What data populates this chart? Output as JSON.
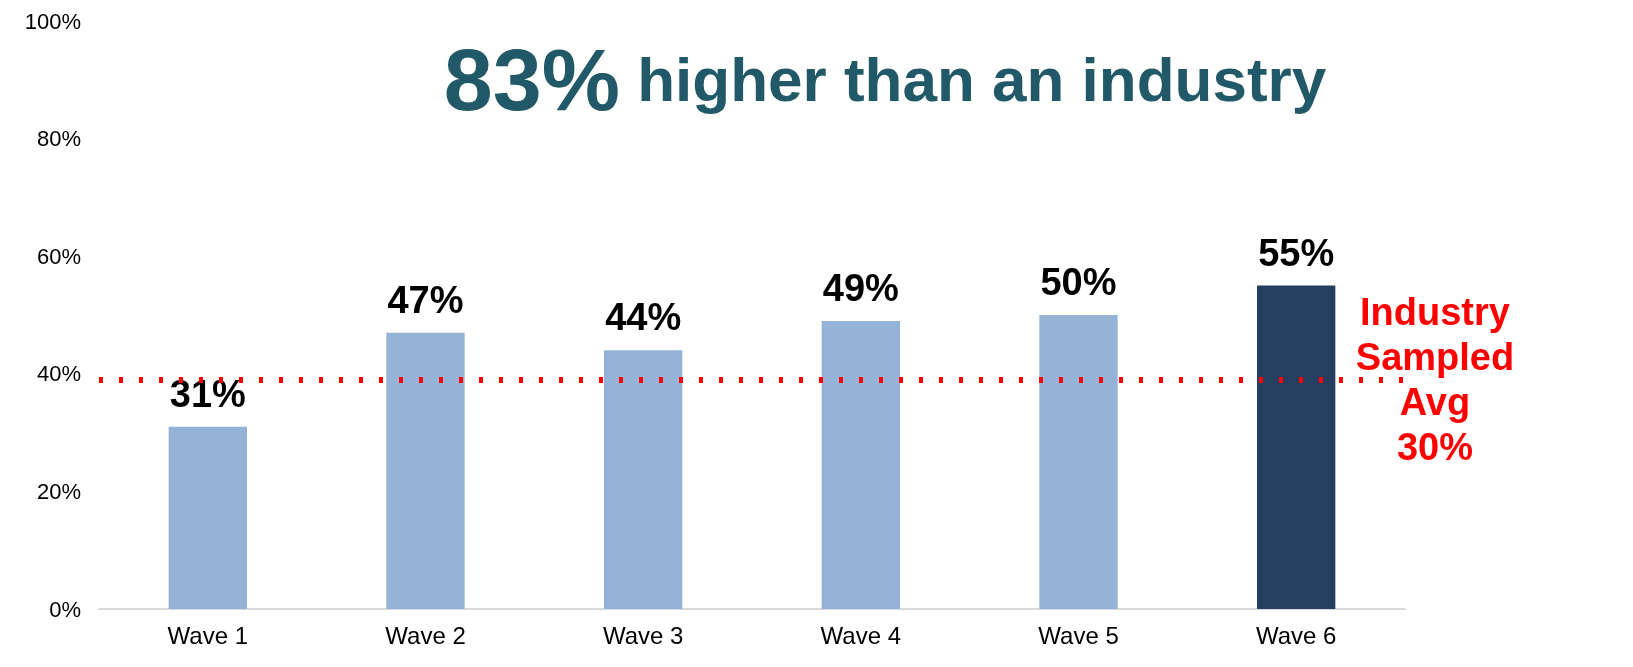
{
  "chart_data": {
    "type": "bar",
    "title": "83% higher than an industry",
    "categories": [
      "Wave 1",
      "Wave 2",
      "Wave 3",
      "Wave 4",
      "Wave 5",
      "Wave 6"
    ],
    "values": [
      31,
      47,
      44,
      49,
      50,
      55
    ],
    "colors": [
      "#95b3d7",
      "#95b3d7",
      "#95b3d7",
      "#95b3d7",
      "#95b3d7",
      "#243f60"
    ],
    "value_labels": [
      "31%",
      "47%",
      "44%",
      "49%",
      "50%",
      "55%"
    ],
    "ylim": [
      0,
      100
    ],
    "yticks": [
      {
        "value": 0,
        "label": "0%"
      },
      {
        "value": 20,
        "label": "20%"
      },
      {
        "value": 40,
        "label": "40%"
      },
      {
        "value": 60,
        "label": "60%"
      },
      {
        "value": 80,
        "label": "80%"
      },
      {
        "value": 100,
        "label": "100%"
      }
    ],
    "ref_lines": [
      {
        "axis": "y",
        "value": 39,
        "label": "Industry Sampled Avg 30%",
        "color": "#ff0000",
        "line_style": "dotted"
      }
    ],
    "grid": false
  }
}
